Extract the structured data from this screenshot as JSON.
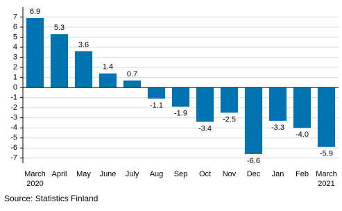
{
  "chart_data": {
    "type": "bar",
    "categories": [
      "March 2020",
      "April",
      "May",
      "June",
      "July",
      "Aug",
      "Sep",
      "Oct",
      "Nov",
      "Dec",
      "Jan",
      "Feb",
      "March 2021"
    ],
    "values": [
      6.9,
      5.3,
      3.6,
      1.4,
      0.7,
      -1.1,
      -1.9,
      -3.4,
      -2.5,
      -6.6,
      -3.3,
      -4.0,
      -5.9
    ],
    "value_labels": [
      "6.9",
      "5.3",
      "3.6",
      "1.4",
      "0.7",
      "-1.1",
      "-1.9",
      "-3.4",
      "-2.5",
      "-6.6",
      "-3.3",
      "-4.0",
      "-5.9"
    ],
    "color": "#0073b0",
    "ylim": [
      -7.5,
      8
    ],
    "yticks": [
      -7,
      -6,
      -5,
      -4,
      -3,
      -2,
      -1,
      0,
      1,
      2,
      3,
      4,
      5,
      6,
      7
    ],
    "grid": true,
    "source": "Source: Statistics Finland"
  }
}
